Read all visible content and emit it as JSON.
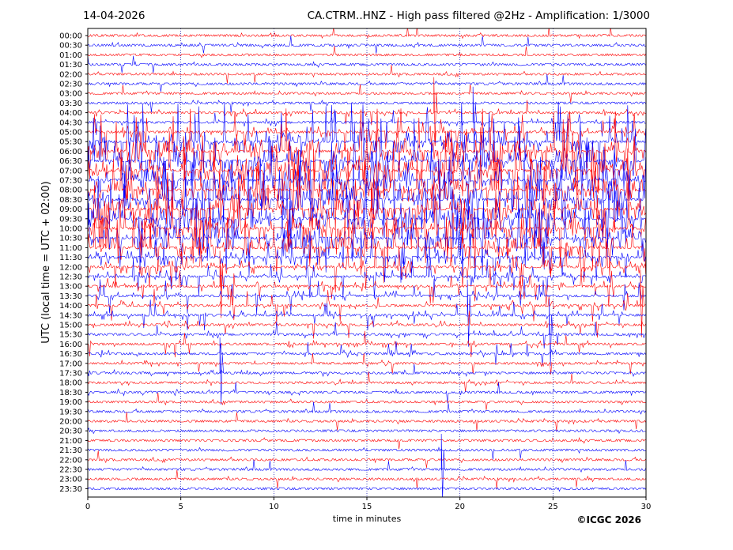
{
  "header": {
    "date": "14-04-2026",
    "title": "CA.CTRM..HNZ - High pass filtered @2Hz - Amplification: 1/3000"
  },
  "footer": {
    "copyright": "©ICGC 2026"
  },
  "colors": {
    "trace_even": "#ff0000",
    "trace_odd": "#0000ff",
    "grid": "#0000aa",
    "axis": "#000000"
  },
  "chart_data": {
    "type": "line",
    "title": "CA.CTRM..HNZ - High pass filtered @2Hz - Amplification: 1/3000",
    "xlabel": "time in minutes",
    "ylabel": "UTC (local time = UTC + 02:00)",
    "xlim": [
      0,
      30
    ],
    "x_ticks": [
      "0",
      "5",
      "10",
      "15",
      "20",
      "25",
      "30"
    ],
    "grid": "vertical dotted at every 5 minutes",
    "rows": [
      "00:00",
      "00:30",
      "01:00",
      "01:30",
      "02:00",
      "02:30",
      "03:00",
      "03:30",
      "04:00",
      "04:30",
      "05:00",
      "05:30",
      "06:00",
      "06:30",
      "07:00",
      "07:30",
      "08:00",
      "08:30",
      "09:00",
      "09:30",
      "10:00",
      "10:30",
      "11:00",
      "11:30",
      "12:00",
      "12:30",
      "13:00",
      "13:30",
      "14:00",
      "14:30",
      "15:00",
      "15:30",
      "16:00",
      "16:30",
      "17:00",
      "17:30",
      "18:00",
      "18:30",
      "19:00",
      "19:30",
      "20:00",
      "20:30",
      "21:00",
      "21:30",
      "22:00",
      "22:30",
      "23:00",
      "23:30"
    ],
    "row_colors": "alternating red (even rows) and blue (odd rows)",
    "activity": [
      0.05,
      0.05,
      0.05,
      0.05,
      0.05,
      0.05,
      0.05,
      0.05,
      0.15,
      0.2,
      0.45,
      0.9,
      1.0,
      1.0,
      1.0,
      1.0,
      1.0,
      1.0,
      1.0,
      1.0,
      0.95,
      0.9,
      0.8,
      0.6,
      0.5,
      0.45,
      0.35,
      0.3,
      0.3,
      0.25,
      0.2,
      0.2,
      0.15,
      0.15,
      0.1,
      0.1,
      0.1,
      0.1,
      0.05,
      0.05,
      0.05,
      0.05,
      0.05,
      0.05,
      0.05,
      0.05,
      0.05,
      0.05
    ],
    "events": [
      {
        "row": "04:00",
        "minute": 18.6
      },
      {
        "row": "04:30",
        "minute": 20.7
      },
      {
        "row": "13:00",
        "minute": 7.1
      },
      {
        "row": "14:30",
        "minute": 20.4
      },
      {
        "row": "15:30",
        "minute": 24.8
      },
      {
        "row": "17:30",
        "minute": 7.1
      },
      {
        "row": "22:30",
        "minute": 19.0
      },
      {
        "row": "14:00",
        "minute": 29.7
      }
    ]
  }
}
